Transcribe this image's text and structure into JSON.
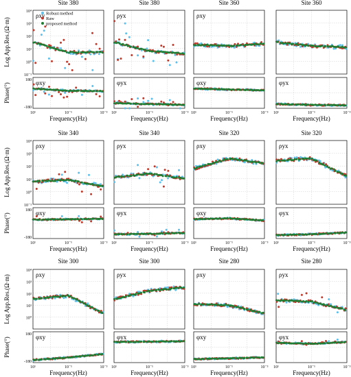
{
  "figure": {
    "colors": {
      "robust": "#5bc0eb",
      "raw": "#c0392b",
      "proposed": "#1e7d32",
      "grid": "#cfcfcf",
      "axis": "#000000"
    },
    "common": {
      "res_ylabel": "Log App.Res.(Ω·m)",
      "phase_ylabel": "Phase(°)",
      "xlabel": "Frequency(Hz)",
      "phase_tick_top": "180",
      "phase_tick_bottom": "-180",
      "x_tick_labels": [
        "10¹",
        "10⁻¹",
        "10⁻³"
      ],
      "res_tick_labels": [
        "10⁴",
        "10³",
        "10²",
        "10¹",
        "10⁰",
        "10⁻¹"
      ]
    },
    "legend": [
      {
        "key": "robust",
        "label": "Robust method"
      },
      {
        "key": "raw",
        "label": "Raw"
      },
      {
        "key": "proposed",
        "label": "proposed method"
      }
    ]
  },
  "chart_data": [
    {
      "type": "scatter",
      "title": "Site 380",
      "comp": "xy",
      "res_label": "ρxy",
      "phase_label": "φxy",
      "res": [
        [
          10,
          1.5
        ],
        [
          0.1,
          0.7
        ],
        [
          0.001,
          0.7
        ]
      ],
      "phase": [
        [
          10,
          50
        ],
        [
          0.1,
          25
        ],
        [
          0.001,
          20
        ]
      ],
      "noise": 2,
      "x_range": [
        10,
        0.001
      ],
      "res_range": [
        -1,
        4
      ],
      "phase_range": [
        -180,
        180
      ]
    },
    {
      "type": "scatter",
      "title": "Site 380",
      "comp": "yx",
      "res_label": "ρyx",
      "phase_label": "φyx",
      "res": [
        [
          10,
          1.5
        ],
        [
          0.1,
          0.8
        ],
        [
          0.001,
          0.6
        ]
      ],
      "phase": [
        [
          10,
          -120
        ],
        [
          0.1,
          -130
        ],
        [
          0.001,
          -140
        ]
      ],
      "noise": 2,
      "x_range": [
        10,
        0.001
      ],
      "res_range": [
        -1,
        4
      ],
      "phase_range": [
        -180,
        180
      ]
    },
    {
      "type": "scatter",
      "title": "Site 360",
      "comp": "xy",
      "res_label": "ρxy",
      "phase_label": "φxy",
      "res": [
        [
          10,
          1.3
        ],
        [
          0.1,
          1.2
        ],
        [
          0.001,
          1.4
        ]
      ],
      "phase": [
        [
          10,
          50
        ],
        [
          0.1,
          40
        ],
        [
          0.001,
          30
        ]
      ],
      "noise": 0,
      "x_range": [
        10,
        0.001
      ],
      "res_range": [
        -1,
        4
      ],
      "phase_range": [
        -180,
        180
      ]
    },
    {
      "type": "scatter",
      "title": "Site 360",
      "comp": "yx",
      "res_label": "",
      "phase_label": "φyx",
      "res": [
        [
          10,
          1.5
        ],
        [
          0.1,
          1.2
        ],
        [
          0.001,
          1.1
        ]
      ],
      "phase": [
        [
          10,
          -130
        ],
        [
          0.1,
          -140
        ],
        [
          0.001,
          -145
        ]
      ],
      "noise": 0,
      "x_range": [
        10,
        0.001
      ],
      "res_range": [
        -1,
        4
      ],
      "phase_range": [
        -180,
        180
      ]
    },
    {
      "type": "scatter",
      "title": "Site 340",
      "comp": "xy",
      "res_label": "ρxy",
      "phase_label": "φxy",
      "res": [
        [
          10,
          0.8
        ],
        [
          0.1,
          0.9
        ],
        [
          0.001,
          0.4
        ]
      ],
      "phase": [
        [
          10,
          40
        ],
        [
          0.1,
          45
        ],
        [
          0.001,
          50
        ]
      ],
      "noise": 1,
      "x_range": [
        10,
        0.001
      ],
      "res_range": [
        -1,
        4
      ],
      "phase_range": [
        -180,
        180
      ]
    },
    {
      "type": "scatter",
      "title": "Site 340",
      "comp": "yx",
      "res_label": "ρyx",
      "phase_label": "φyx",
      "res": [
        [
          10,
          1.1
        ],
        [
          0.1,
          1.4
        ],
        [
          0.001,
          1.0
        ]
      ],
      "phase": [
        [
          10,
          -130
        ],
        [
          0.1,
          -125
        ],
        [
          0.001,
          -115
        ]
      ],
      "noise": 1,
      "x_range": [
        10,
        0.001
      ],
      "res_range": [
        -1,
        4
      ],
      "phase_range": [
        -180,
        180
      ]
    },
    {
      "type": "scatter",
      "title": "Site 320",
      "comp": "xy",
      "res_label": "ρxy",
      "phase_label": "φxy",
      "res": [
        [
          10,
          1.8
        ],
        [
          0.1,
          2.6
        ],
        [
          0.001,
          2.2
        ]
      ],
      "phase": [
        [
          10,
          45
        ],
        [
          0.1,
          55
        ],
        [
          0.001,
          30
        ]
      ],
      "noise": 0,
      "x_range": [
        10,
        0.001
      ],
      "res_range": [
        -1,
        4
      ],
      "phase_range": [
        -180,
        180
      ]
    },
    {
      "type": "scatter",
      "title": "Site 320",
      "comp": "yx",
      "res_label": "ρyx",
      "phase_label": "φyx",
      "res": [
        [
          10,
          2.4
        ],
        [
          0.1,
          2.6
        ],
        [
          0.001,
          1.2
        ]
      ],
      "phase": [
        [
          10,
          -140
        ],
        [
          0.1,
          -130
        ],
        [
          0.001,
          -110
        ]
      ],
      "noise": 0,
      "x_range": [
        10,
        0.001
      ],
      "res_range": [
        -1,
        4
      ],
      "phase_range": [
        -180,
        180
      ]
    },
    {
      "type": "scatter",
      "title": "Site 300",
      "comp": "xy",
      "res_label": "ρxy",
      "phase_label": "φxy",
      "res": [
        [
          10,
          1.5
        ],
        [
          0.1,
          1.8
        ],
        [
          0.001,
          0.3
        ]
      ],
      "phase": [
        [
          10,
          -150
        ],
        [
          0.1,
          -120
        ],
        [
          0.001,
          -80
        ]
      ],
      "noise": 0,
      "x_range": [
        10,
        0.001
      ],
      "res_range": [
        -1,
        4
      ],
      "phase_range": [
        -180,
        180
      ]
    },
    {
      "type": "scatter",
      "title": "Site 300",
      "comp": "yx",
      "res_label": "ρyx",
      "phase_label": "φyx",
      "res": [
        [
          10,
          1.5
        ],
        [
          0.1,
          2.2
        ],
        [
          0.001,
          2.5
        ]
      ],
      "phase": [
        [
          10,
          60
        ],
        [
          0.1,
          65
        ],
        [
          0.001,
          70
        ]
      ],
      "noise": 0,
      "x_range": [
        10,
        0.001
      ],
      "res_range": [
        -1,
        4
      ],
      "phase_range": [
        -180,
        180
      ]
    },
    {
      "type": "scatter",
      "title": "Site 280",
      "comp": "xy",
      "res_label": "ρxy",
      "phase_label": "φxy",
      "res": [
        [
          10,
          1.1
        ],
        [
          0.1,
          1.0
        ],
        [
          0.001,
          0.3
        ]
      ],
      "phase": [
        [
          10,
          -140
        ],
        [
          0.1,
          -130
        ],
        [
          0.001,
          -120
        ]
      ],
      "noise": 0,
      "x_range": [
        10,
        0.001
      ],
      "res_range": [
        -1,
        4
      ],
      "phase_range": [
        -180,
        180
      ]
    },
    {
      "type": "scatter",
      "title": "Site 280",
      "comp": "yx",
      "res_label": "ρyx",
      "phase_label": "φyx",
      "res": [
        [
          10,
          1.4
        ],
        [
          0.1,
          1.3
        ],
        [
          0.001,
          0.6
        ]
      ],
      "phase": [
        [
          10,
          50
        ],
        [
          0.1,
          40
        ],
        [
          0.001,
          60
        ]
      ],
      "noise": 1,
      "x_range": [
        10,
        0.001
      ],
      "res_range": [
        -1,
        4
      ],
      "phase_range": [
        -180,
        180
      ]
    }
  ]
}
